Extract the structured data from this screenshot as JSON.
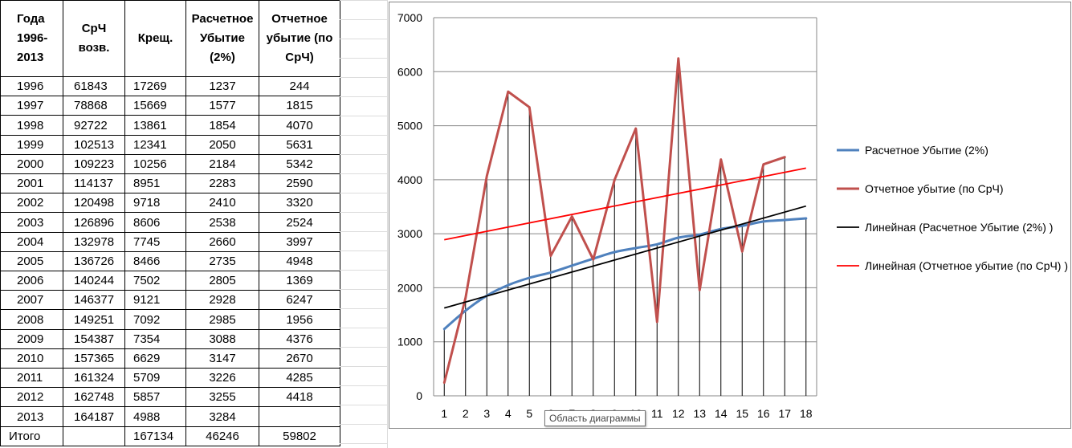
{
  "table": {
    "headers": [
      "Года 1996-2013",
      "СрЧ возв.",
      "Крещ.",
      "Расчетное Убытие (2%)",
      "Отчетное убытие (по СрЧ)"
    ],
    "rows": [
      [
        "1996",
        "61843",
        "17269",
        "1237",
        "244"
      ],
      [
        "1997",
        "78868",
        "15669",
        "1577",
        "1815"
      ],
      [
        "1998",
        "92722",
        "13861",
        "1854",
        "4070"
      ],
      [
        "1999",
        "102513",
        "12341",
        "2050",
        "5631"
      ],
      [
        "2000",
        "109223",
        "10256",
        "2184",
        "5342"
      ],
      [
        "2001",
        "114137",
        "8951",
        "2283",
        "2590"
      ],
      [
        "2002",
        "120498",
        "9718",
        "2410",
        "3320"
      ],
      [
        "2003",
        "126896",
        "8606",
        "2538",
        "2524"
      ],
      [
        "2004",
        "132978",
        "7745",
        "2660",
        "3997"
      ],
      [
        "2005",
        "136726",
        "8466",
        "2735",
        "4948"
      ],
      [
        "2006",
        "140244",
        "7502",
        "2805",
        "1369"
      ],
      [
        "2007",
        "146377",
        "9121",
        "2928",
        "6247"
      ],
      [
        "2008",
        "149251",
        "7092",
        "2985",
        "1956"
      ],
      [
        "2009",
        "154387",
        "7354",
        "3088",
        "4376"
      ],
      [
        "2010",
        "157365",
        "6629",
        "3147",
        "2670"
      ],
      [
        "2011",
        "161324",
        "5709",
        "3226",
        "4285"
      ],
      [
        "2012",
        "162748",
        "5857",
        "3255",
        "4418"
      ],
      [
        "2013",
        "164187",
        "4988",
        "3284",
        ""
      ]
    ],
    "total": [
      "Итого",
      "",
      "167134",
      "46246",
      "59802"
    ]
  },
  "chart_data": {
    "type": "line",
    "x": [
      1,
      2,
      3,
      4,
      5,
      6,
      7,
      8,
      9,
      10,
      11,
      12,
      13,
      14,
      15,
      16,
      17,
      18
    ],
    "ylim": [
      0,
      7000
    ],
    "yticks": [
      0,
      1000,
      2000,
      3000,
      4000,
      5000,
      6000,
      7000
    ],
    "grid": true,
    "drop_lines": true,
    "legend_position": "right",
    "series": [
      {
        "name": "Расчетное Убытие (2%)",
        "color": "#4f81bd",
        "smooth": true,
        "values": [
          1237,
          1577,
          1854,
          2050,
          2184,
          2283,
          2410,
          2538,
          2660,
          2735,
          2805,
          2928,
          2985,
          3088,
          3147,
          3226,
          3255,
          3284
        ]
      },
      {
        "name": "Отчетное убытие (по СрЧ)",
        "color": "#c0504d",
        "smooth": false,
        "values": [
          244,
          1815,
          4070,
          5631,
          5342,
          2590,
          3320,
          2524,
          3997,
          4948,
          1369,
          6247,
          1956,
          4376,
          2670,
          4285,
          4418,
          null
        ]
      },
      {
        "name": "Линейная (Расчетное Убытие (2%) )",
        "color": "#000000",
        "trendline": true,
        "values": [
          1625,
          1736,
          1847,
          1958,
          2069,
          2180,
          2291,
          2402,
          2513,
          2624,
          2735,
          2846,
          2957,
          3068,
          3179,
          3290,
          3401,
          3512
        ]
      },
      {
        "name": "Линейная (Отчетное убытие (по СрЧ) )",
        "color": "#ff0000",
        "trendline": true,
        "values": [
          2889,
          2967,
          3045,
          3123,
          3201,
          3279,
          3357,
          3435,
          3513,
          3591,
          3669,
          3747,
          3825,
          3903,
          3981,
          4059,
          4137,
          4215
        ]
      }
    ]
  },
  "tooltip": "Область диаграммы"
}
